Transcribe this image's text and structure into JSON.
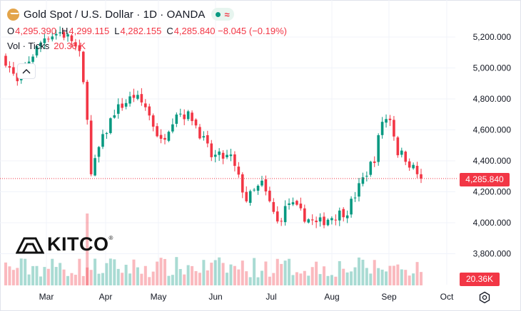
{
  "header": {
    "title": "Gold Spot / U.S. Dollar · 1D · OANDA",
    "ohlc": [
      {
        "label": "O",
        "value": "4,295.390"
      },
      {
        "label": "H",
        "value": "4,299.115"
      },
      {
        "label": "L",
        "value": "4,282.155"
      },
      {
        "label": "C",
        "value": "4,285.840 −8.045 (−0.19%)"
      }
    ],
    "volume_label": "Vol · Ticks",
    "volume_value": "20.36 K"
  },
  "logo": {
    "text": "KITCO",
    "reg": "®"
  },
  "price_tag": "4,285.840",
  "volume_tag": "20.36K",
  "colors": {
    "up": "#089981",
    "down": "#f23645",
    "gold_icon": "#e3a44a"
  },
  "icons": [
    "gold-coin-icon",
    "market-open-dot-icon",
    "delayed-wave-icon",
    "chevron-up-icon",
    "settings-icon"
  ],
  "chart_data": {
    "type": "candlestick",
    "y_ticks": [
      "5,200.000",
      "5,000.000",
      "4,800.000",
      "4,600.000",
      "4,400.000",
      "4,200.000",
      "4,000.000",
      "3,800.000"
    ],
    "x_ticks": [
      "Mar",
      "Apr",
      "May",
      "Jun",
      "Jul",
      "Aug",
      "Sep",
      "Oct"
    ],
    "ylim": [
      3760,
      5290
    ],
    "last_price": 4285.84,
    "close_path": [
      [
        0,
        5050
      ],
      [
        3,
        4900
      ],
      [
        6,
        5050
      ],
      [
        10,
        5200
      ],
      [
        14,
        5230
      ],
      [
        17,
        5180
      ],
      [
        19,
        5080
      ],
      [
        21,
        4700
      ],
      [
        22,
        4300
      ],
      [
        24,
        4480
      ],
      [
        28,
        4720
      ],
      [
        33,
        4820
      ],
      [
        36,
        4750
      ],
      [
        40,
        4520
      ],
      [
        44,
        4720
      ],
      [
        48,
        4680
      ],
      [
        53,
        4430
      ],
      [
        58,
        4420
      ],
      [
        62,
        4150
      ],
      [
        66,
        4250
      ],
      [
        70,
        4000
      ],
      [
        73,
        4130
      ],
      [
        77,
        4040
      ],
      [
        80,
        3990
      ],
      [
        84,
        4040
      ],
      [
        88,
        4080
      ],
      [
        92,
        4280
      ],
      [
        95,
        4420
      ],
      [
        97,
        4660
      ],
      [
        99,
        4680
      ],
      [
        101,
        4460
      ],
      [
        103,
        4420
      ],
      [
        105,
        4350
      ],
      [
        107,
        4285.84
      ]
    ],
    "candle_count": 108,
    "volume_level_range": [
      16000,
      32000
    ],
    "volume_last": 20360
  }
}
